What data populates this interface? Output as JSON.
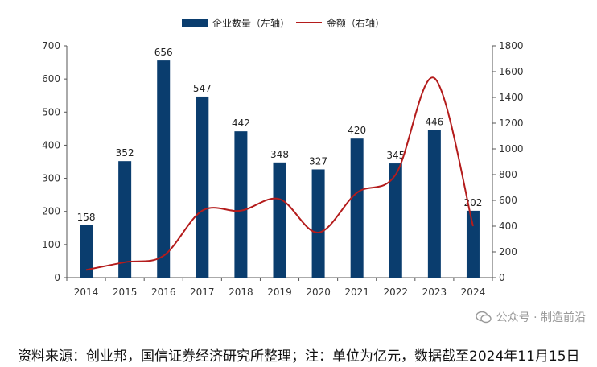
{
  "chart_data": {
    "type": "bar+line",
    "categories": [
      "2014",
      "2015",
      "2016",
      "2017",
      "2018",
      "2019",
      "2020",
      "2021",
      "2022",
      "2023",
      "2024"
    ],
    "series": [
      {
        "name": "企业数量（左轴）",
        "type": "bar",
        "axis": "left",
        "values": [
          158,
          352,
          656,
          547,
          442,
          348,
          327,
          420,
          345,
          446,
          202
        ],
        "color": "#0a3d6e"
      },
      {
        "name": "金额（右轴）",
        "type": "line",
        "axis": "right",
        "values": [
          60,
          120,
          170,
          520,
          520,
          610,
          350,
          660,
          800,
          1550,
          400
        ],
        "color": "#b41c1c"
      }
    ],
    "y_left": {
      "min": 0,
      "max": 700,
      "step": 100
    },
    "y_right": {
      "min": 0,
      "max": 1800,
      "step": 200
    },
    "legend_position": "top-center"
  },
  "footer": "资料来源：创业邦，国信证券经济研究所整理；注：单位为亿元，数据截至2024年11月15日",
  "watermark": {
    "text": "公众号 · 制造前沿"
  }
}
